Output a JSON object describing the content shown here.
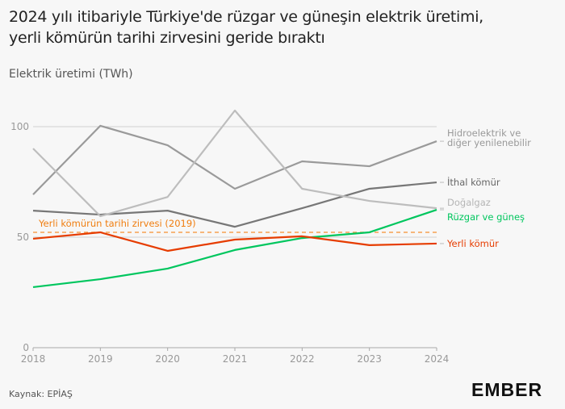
{
  "title_line1": "2024 yılı itibariyle Türkiye'de rüzgar ve güneşin elektrik üretimi,",
  "title_line2": "yerli kömürün tarihi zirvesini geride bıraktı",
  "source": "Kaynak: EPİAŞ",
  "logo": "EMBER",
  "chart_data": {
    "type": "line",
    "title": "2024 yılı itibariyle Türkiye'de rüzgar ve güneşin elektrik üretimi, yerli kömürün tarihi zirvesini geride bıraktı",
    "ylabel": "Elektrik üretimi (TWh)",
    "xlabel": "",
    "x": [
      2018,
      2019,
      2020,
      2021,
      2022,
      2023,
      2024
    ],
    "x_ticks": [
      "2018",
      "2019",
      "2020",
      "2021",
      "2022",
      "2023",
      "2024"
    ],
    "y_ticks": [
      "0",
      "50",
      "100"
    ],
    "ylim": [
      0,
      100
    ],
    "grid": "horizontal",
    "legend": "direct labels right",
    "series": [
      {
        "name": "Hidroelektrik ve diğer yenilenebilir",
        "name_lines": [
          "Hidroelektrik ve",
          "diğer yenilenebilir"
        ],
        "color": "#9a9a9a",
        "values": [
          69.3,
          100.4,
          91.6,
          71.9,
          84.3,
          82.1,
          93.4
        ]
      },
      {
        "name": "İthal kömür",
        "name_lines": [
          "İthal kömür"
        ],
        "color": "#777777",
        "values": [
          62.0,
          60.2,
          62.0,
          54.7,
          63.1,
          71.9,
          74.8
        ]
      },
      {
        "name": "Doğalgaz",
        "name_lines": [
          "Doğalgaz"
        ],
        "color": "#bdbdbd",
        "values": [
          90.1,
          59.5,
          68.2,
          107.3,
          71.9,
          66.4,
          63.1
        ]
      },
      {
        "name": "Rüzgar ve güneş",
        "name_lines": [
          "Rüzgar ve güneş"
        ],
        "color": "#00c65e",
        "values": [
          27.4,
          31.0,
          35.8,
          44.2,
          49.6,
          52.2,
          62.4
        ]
      },
      {
        "name": "Yerli kömür",
        "name_lines": [
          "Yerli kömür"
        ],
        "color": "#e63c00",
        "values": [
          49.3,
          52.2,
          43.8,
          48.9,
          50.4,
          46.4,
          47.1
        ]
      }
    ],
    "annotation": {
      "text": "Yerli kömürün tarihi zirvesi (2019)",
      "value": 52.2,
      "color": "#f5a050"
    }
  }
}
